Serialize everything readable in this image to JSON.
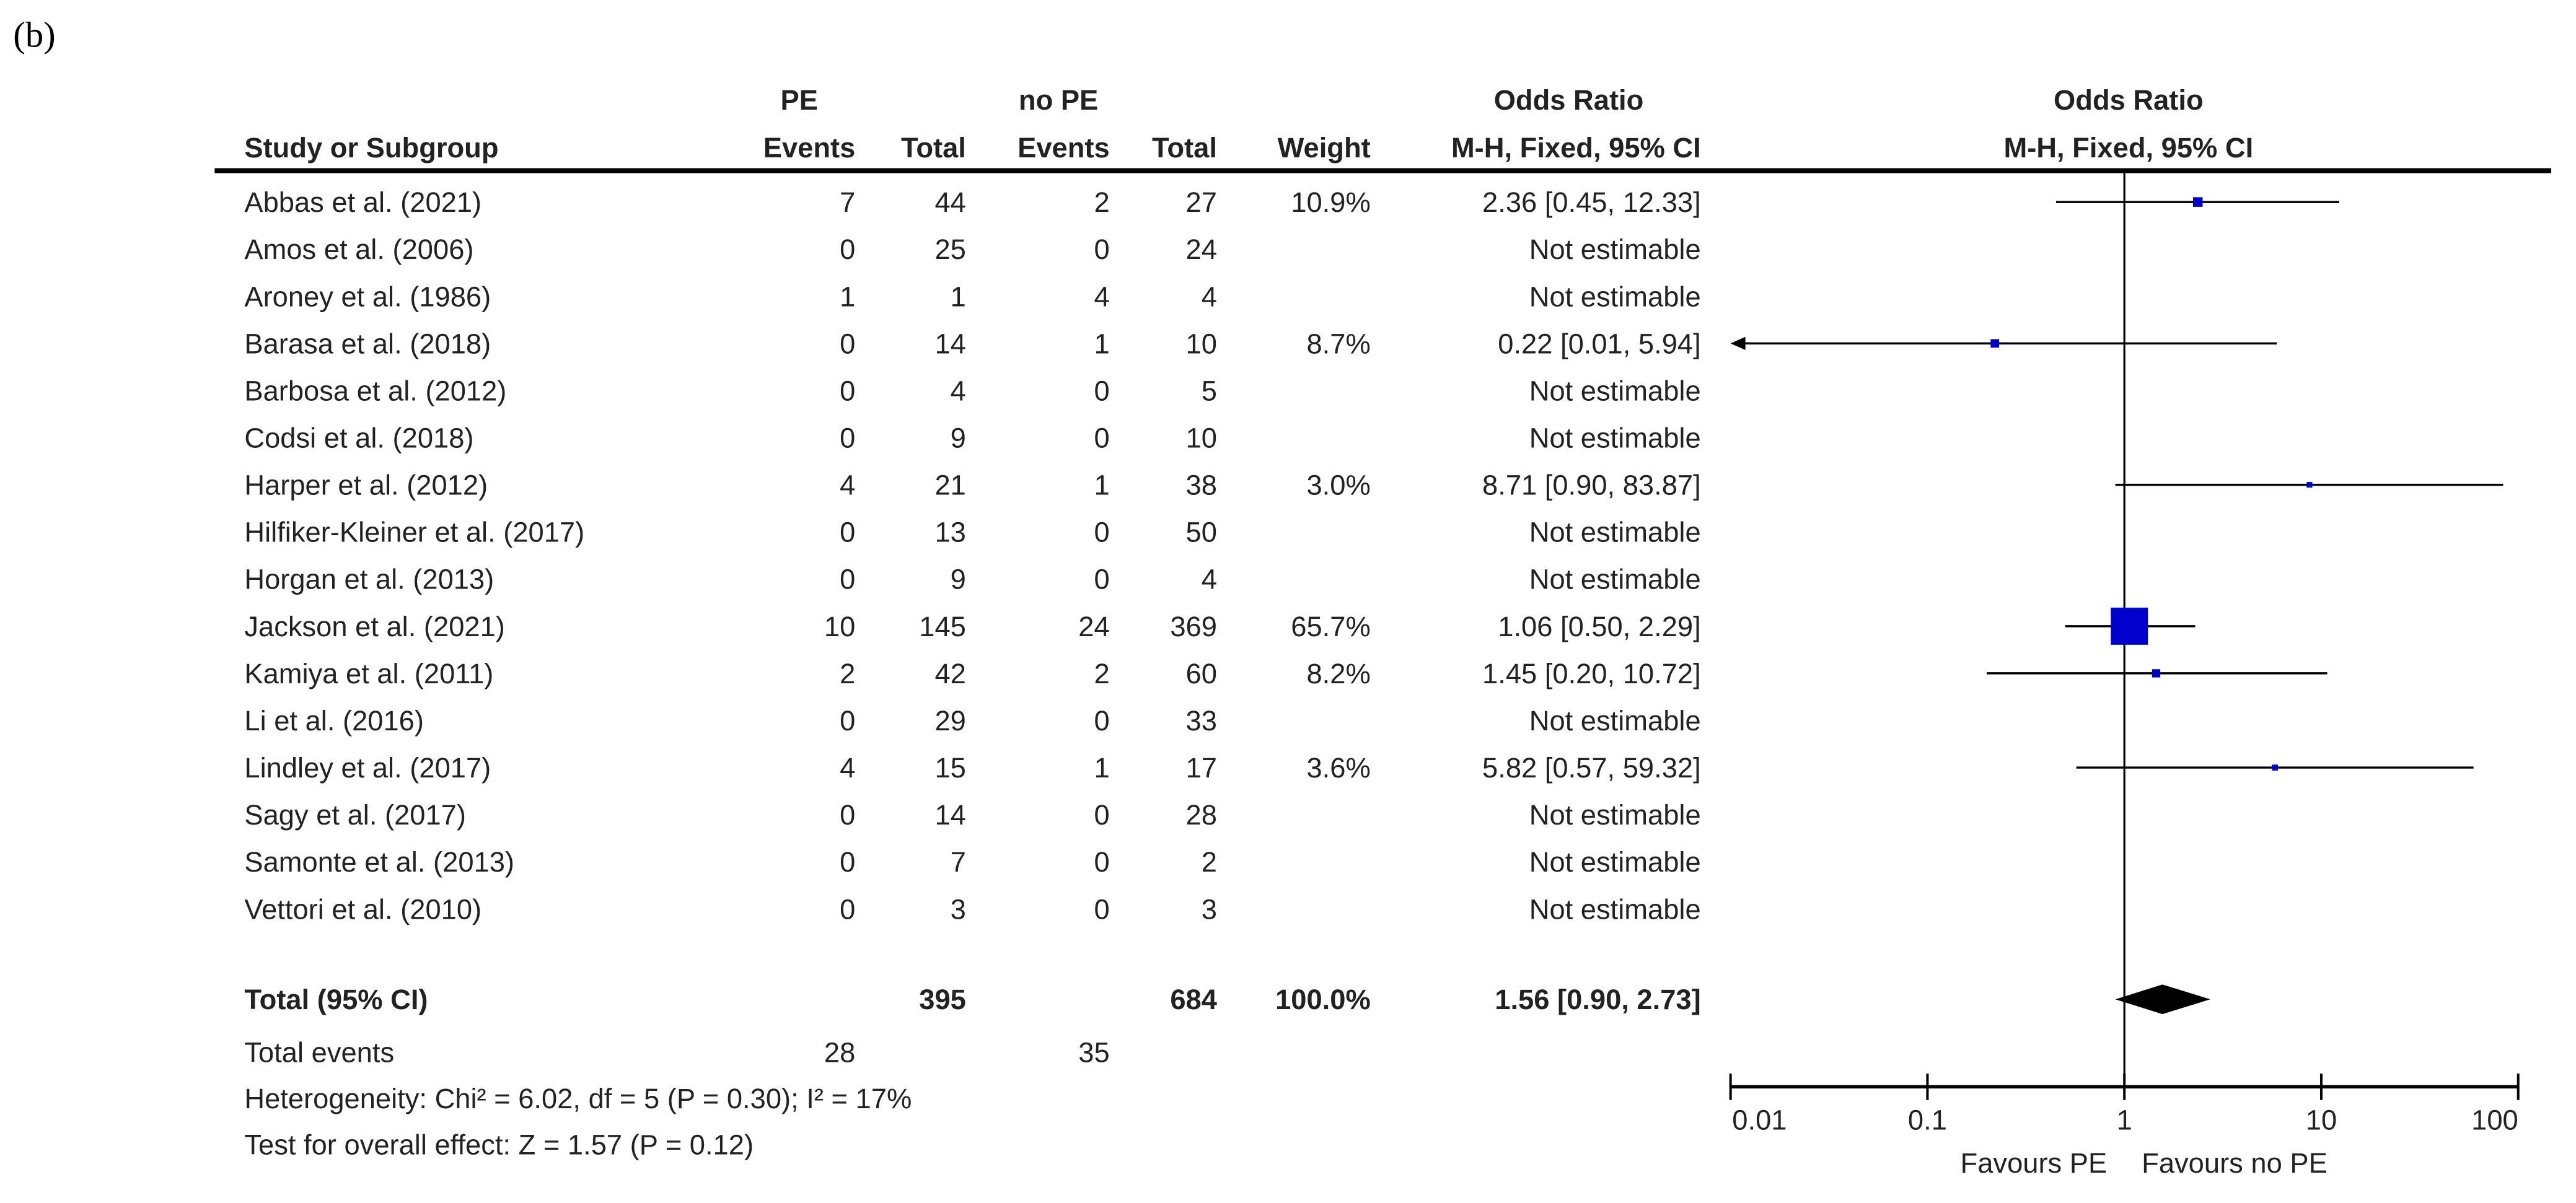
{
  "panel_label": "(b)",
  "chart_data": {
    "type": "forest",
    "scale": "log",
    "xlim": [
      0.01,
      100
    ],
    "x_ticks": [
      "0.01",
      "0.1",
      "1",
      "10",
      "100"
    ],
    "x_tick_values": [
      0.01,
      0.1,
      1,
      10,
      100
    ],
    "favours_left": "Favours PE",
    "favours_right": "Favours no PE",
    "header": {
      "group1": "PE",
      "group2": "no PE",
      "or_col_title": "Odds Ratio",
      "plot_title": "Odds Ratio",
      "study": "Study or Subgroup",
      "events": "Events",
      "total": "Total",
      "weight": "Weight",
      "or_method": "M-H, Fixed, 95% CI",
      "plot_method": "M-H, Fixed, 95% CI"
    },
    "studies": [
      {
        "name": "Abbas et al. (2021)",
        "e1": "7",
        "n1": "44",
        "e2": "2",
        "n2": "27",
        "weight": "10.9%",
        "w": 10.9,
        "or_text": "2.36 [0.45, 12.33]",
        "or": 2.36,
        "lo": 0.45,
        "hi": 12.33
      },
      {
        "name": "Amos et al. (2006)",
        "e1": "0",
        "n1": "25",
        "e2": "0",
        "n2": "24",
        "weight": "",
        "or_text": "Not estimable"
      },
      {
        "name": "Aroney et al. (1986)",
        "e1": "1",
        "n1": "1",
        "e2": "4",
        "n2": "4",
        "weight": "",
        "or_text": "Not estimable"
      },
      {
        "name": "Barasa et al. (2018)",
        "e1": "0",
        "n1": "14",
        "e2": "1",
        "n2": "10",
        "weight": "8.7%",
        "w": 8.7,
        "or_text": "0.22 [0.01, 5.94]",
        "or": 0.22,
        "lo": 0.01,
        "hi": 5.94
      },
      {
        "name": "Barbosa et al. (2012)",
        "e1": "0",
        "n1": "4",
        "e2": "0",
        "n2": "5",
        "weight": "",
        "or_text": "Not estimable"
      },
      {
        "name": "Codsi et al. (2018)",
        "e1": "0",
        "n1": "9",
        "e2": "0",
        "n2": "10",
        "weight": "",
        "or_text": "Not estimable"
      },
      {
        "name": "Harper et al. (2012)",
        "e1": "4",
        "n1": "21",
        "e2": "1",
        "n2": "38",
        "weight": "3.0%",
        "w": 3.0,
        "or_text": "8.71 [0.90, 83.87]",
        "or": 8.71,
        "lo": 0.9,
        "hi": 83.87
      },
      {
        "name": "Hilfiker-Kleiner et al. (2017)",
        "e1": "0",
        "n1": "13",
        "e2": "0",
        "n2": "50",
        "weight": "",
        "or_text": "Not estimable"
      },
      {
        "name": "Horgan et al. (2013)",
        "e1": "0",
        "n1": "9",
        "e2": "0",
        "n2": "4",
        "weight": "",
        "or_text": "Not estimable"
      },
      {
        "name": "Jackson et al. (2021)",
        "e1": "10",
        "n1": "145",
        "e2": "24",
        "n2": "369",
        "weight": "65.7%",
        "w": 65.7,
        "or_text": "1.06 [0.50, 2.29]",
        "or": 1.06,
        "lo": 0.5,
        "hi": 2.29
      },
      {
        "name": "Kamiya et al. (2011)",
        "e1": "2",
        "n1": "42",
        "e2": "2",
        "n2": "60",
        "weight": "8.2%",
        "w": 8.2,
        "or_text": "1.45 [0.20, 10.72]",
        "or": 1.45,
        "lo": 0.2,
        "hi": 10.72
      },
      {
        "name": "Li et al. (2016)",
        "e1": "0",
        "n1": "29",
        "e2": "0",
        "n2": "33",
        "weight": "",
        "or_text": "Not estimable"
      },
      {
        "name": "Lindley et al. (2017)",
        "e1": "4",
        "n1": "15",
        "e2": "1",
        "n2": "17",
        "weight": "3.6%",
        "w": 3.6,
        "or_text": "5.82 [0.57, 59.32]",
        "or": 5.82,
        "lo": 0.57,
        "hi": 59.32
      },
      {
        "name": "Sagy et al. (2017)",
        "e1": "0",
        "n1": "14",
        "e2": "0",
        "n2": "28",
        "weight": "",
        "or_text": "Not estimable"
      },
      {
        "name": "Samonte et al. (2013)",
        "e1": "0",
        "n1": "7",
        "e2": "0",
        "n2": "2",
        "weight": "",
        "or_text": "Not estimable"
      },
      {
        "name": "Vettori et al. (2010)",
        "e1": "0",
        "n1": "3",
        "e2": "0",
        "n2": "3",
        "weight": "",
        "or_text": "Not estimable"
      }
    ],
    "total": {
      "label": "Total (95% CI)",
      "n1": "395",
      "n2": "684",
      "weight": "100.0%",
      "or_text": "1.56 [0.90, 2.73]",
      "or": 1.56,
      "lo": 0.9,
      "hi": 2.73
    },
    "total_events": {
      "label": "Total events",
      "e1": "28",
      "e2": "35"
    },
    "heterogeneity": "Heterogeneity: Chi² = 6.02, df = 5 (P = 0.30); I² = 17%",
    "overall_effect": "Test for overall effect: Z = 1.57 (P = 0.12)",
    "colors": {
      "study_marker": "#0000cc",
      "summary_diamond": "#000000",
      "text": "#222222"
    }
  }
}
